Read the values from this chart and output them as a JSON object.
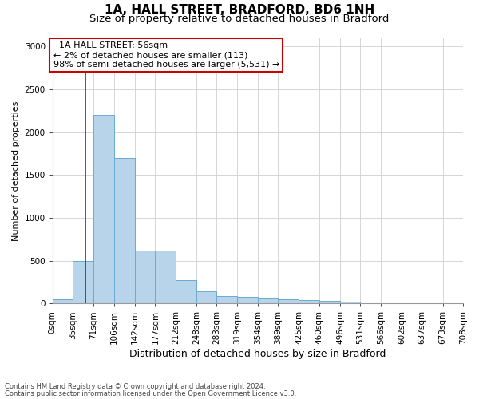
{
  "title1": "1A, HALL STREET, BRADFORD, BD6 1NH",
  "title2": "Size of property relative to detached houses in Bradford",
  "xlabel": "Distribution of detached houses by size in Bradford",
  "ylabel": "Number of detached properties",
  "footnote1": "Contains HM Land Registry data © Crown copyright and database right 2024.",
  "footnote2": "Contains public sector information licensed under the Open Government Licence v3.0.",
  "bin_labels": [
    "0sqm",
    "35sqm",
    "71sqm",
    "106sqm",
    "142sqm",
    "177sqm",
    "212sqm",
    "248sqm",
    "283sqm",
    "319sqm",
    "354sqm",
    "389sqm",
    "425sqm",
    "460sqm",
    "496sqm",
    "531sqm",
    "566sqm",
    "602sqm",
    "637sqm",
    "673sqm",
    "708sqm"
  ],
  "bin_edges": [
    0,
    35,
    71,
    106,
    142,
    177,
    212,
    248,
    283,
    319,
    354,
    389,
    425,
    460,
    496,
    531,
    566,
    602,
    637,
    673,
    708
  ],
  "bar_values": [
    50,
    500,
    2200,
    1700,
    620,
    620,
    270,
    140,
    90,
    80,
    60,
    50,
    40,
    30,
    20,
    5,
    5,
    5,
    5,
    5
  ],
  "bar_color": "#b8d4ea",
  "bar_edge_color": "#6aaad4",
  "property_line_x": 56,
  "property_line_color": "#cc0000",
  "annotation_text": "  1A HALL STREET: 56sqm\n← 2% of detached houses are smaller (113)\n98% of semi-detached houses are larger (5,531) →",
  "annotation_box_color": "#cc0000",
  "ylim": [
    0,
    3100
  ],
  "yticks": [
    0,
    500,
    1000,
    1500,
    2000,
    2500,
    3000
  ],
  "grid_color": "#d0d0d0",
  "background_color": "#ffffff",
  "title1_fontsize": 11,
  "title2_fontsize": 9.5,
  "xlabel_fontsize": 9,
  "ylabel_fontsize": 8,
  "tick_fontsize": 7.5,
  "annotation_fontsize": 8
}
